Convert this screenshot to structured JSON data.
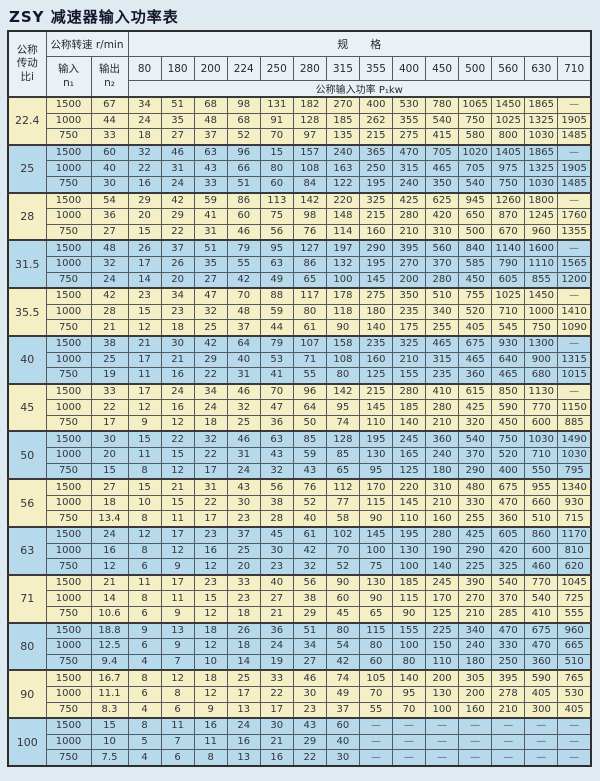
{
  "page": {
    "title": "ZSY 减速器输入功率表"
  },
  "table": {
    "header": {
      "ratio_label": "公称\n传动\n比i",
      "speed_label": "公称转速 r/min",
      "input_label": "输入\nn₁",
      "output_label": "输出\nn₂",
      "spec_label": "规　　格",
      "power_label": "公称输入功率 P₁kw",
      "spec_columns": [
        "80",
        "180",
        "200",
        "224",
        "250",
        "280",
        "315",
        "355",
        "400",
        "450",
        "500",
        "560",
        "630",
        "710"
      ]
    },
    "colors": {
      "group_cream": "#f4efc5",
      "group_blue": "#b7d9ec",
      "header_bg": "#eaf1f6",
      "page_bg": "#dfeaf1"
    },
    "dash": "—",
    "groups": [
      {
        "ratio": "22.4",
        "rows": [
          {
            "n1": "1500",
            "n2": "67",
            "values": [
              "34",
              "51",
              "68",
              "98",
              "131",
              "182",
              "270",
              "400",
              "530",
              "780",
              "1065",
              "1450",
              "1865",
              "—"
            ]
          },
          {
            "n1": "1000",
            "n2": "44",
            "values": [
              "24",
              "35",
              "48",
              "68",
              "91",
              "128",
              "185",
              "262",
              "355",
              "540",
              "750",
              "1025",
              "1325",
              "1905"
            ]
          },
          {
            "n1": "750",
            "n2": "33",
            "values": [
              "18",
              "27",
              "37",
              "52",
              "70",
              "97",
              "135",
              "215",
              "275",
              "415",
              "580",
              "800",
              "1030",
              "1485"
            ]
          }
        ]
      },
      {
        "ratio": "25",
        "rows": [
          {
            "n1": "1500",
            "n2": "60",
            "values": [
              "32",
              "46",
              "63",
              "96",
              "15",
              "157",
              "240",
              "365",
              "470",
              "705",
              "1020",
              "1405",
              "1865",
              "—"
            ]
          },
          {
            "n1": "1000",
            "n2": "40",
            "values": [
              "22",
              "31",
              "43",
              "66",
              "80",
              "108",
              "163",
              "250",
              "315",
              "465",
              "705",
              "975",
              "1325",
              "1905"
            ]
          },
          {
            "n1": "750",
            "n2": "30",
            "values": [
              "16",
              "24",
              "33",
              "51",
              "60",
              "84",
              "122",
              "195",
              "240",
              "350",
              "540",
              "750",
              "1030",
              "1485"
            ]
          }
        ]
      },
      {
        "ratio": "28",
        "rows": [
          {
            "n1": "1500",
            "n2": "54",
            "values": [
              "29",
              "42",
              "59",
              "86",
              "113",
              "142",
              "220",
              "325",
              "425",
              "625",
              "945",
              "1260",
              "1800",
              "—"
            ]
          },
          {
            "n1": "1000",
            "n2": "36",
            "values": [
              "20",
              "29",
              "41",
              "60",
              "75",
              "98",
              "148",
              "215",
              "280",
              "420",
              "650",
              "870",
              "1245",
              "1760"
            ]
          },
          {
            "n1": "750",
            "n2": "27",
            "values": [
              "15",
              "22",
              "31",
              "46",
              "56",
              "76",
              "114",
              "160",
              "210",
              "310",
              "500",
              "670",
              "960",
              "1355"
            ]
          }
        ]
      },
      {
        "ratio": "31.5",
        "rows": [
          {
            "n1": "1500",
            "n2": "48",
            "values": [
              "26",
              "37",
              "51",
              "79",
              "95",
              "127",
              "197",
              "290",
              "395",
              "560",
              "840",
              "1140",
              "1600",
              "—"
            ]
          },
          {
            "n1": "1000",
            "n2": "32",
            "values": [
              "17",
              "26",
              "35",
              "55",
              "63",
              "86",
              "132",
              "195",
              "270",
              "370",
              "585",
              "790",
              "1110",
              "1565"
            ]
          },
          {
            "n1": "750",
            "n2": "24",
            "values": [
              "14",
              "20",
              "27",
              "42",
              "49",
              "65",
              "100",
              "145",
              "200",
              "280",
              "450",
              "605",
              "855",
              "1200"
            ]
          }
        ]
      },
      {
        "ratio": "35.5",
        "rows": [
          {
            "n1": "1500",
            "n2": "42",
            "values": [
              "23",
              "34",
              "47",
              "70",
              "88",
              "117",
              "178",
              "275",
              "350",
              "510",
              "755",
              "1025",
              "1450",
              "—"
            ]
          },
          {
            "n1": "1000",
            "n2": "28",
            "values": [
              "15",
              "23",
              "32",
              "48",
              "59",
              "80",
              "118",
              "180",
              "235",
              "340",
              "520",
              "710",
              "1000",
              "1410"
            ]
          },
          {
            "n1": "750",
            "n2": "21",
            "values": [
              "12",
              "18",
              "25",
              "37",
              "44",
              "61",
              "90",
              "140",
              "175",
              "255",
              "405",
              "545",
              "750",
              "1090"
            ]
          }
        ]
      },
      {
        "ratio": "40",
        "rows": [
          {
            "n1": "1500",
            "n2": "38",
            "values": [
              "21",
              "30",
              "42",
              "64",
              "79",
              "107",
              "158",
              "235",
              "325",
              "465",
              "675",
              "930",
              "1300",
              "—"
            ]
          },
          {
            "n1": "1000",
            "n2": "25",
            "values": [
              "17",
              "21",
              "29",
              "40",
              "53",
              "71",
              "108",
              "160",
              "210",
              "315",
              "465",
              "640",
              "900",
              "1315"
            ]
          },
          {
            "n1": "750",
            "n2": "19",
            "values": [
              "11",
              "16",
              "22",
              "31",
              "41",
              "55",
              "80",
              "125",
              "155",
              "235",
              "360",
              "465",
              "680",
              "1015"
            ]
          }
        ]
      },
      {
        "ratio": "45",
        "rows": [
          {
            "n1": "1500",
            "n2": "33",
            "values": [
              "17",
              "24",
              "34",
              "46",
              "70",
              "96",
              "142",
              "215",
              "280",
              "410",
              "615",
              "850",
              "1130",
              "—"
            ]
          },
          {
            "n1": "1000",
            "n2": "22",
            "values": [
              "12",
              "16",
              "24",
              "32",
              "47",
              "64",
              "95",
              "145",
              "185",
              "280",
              "425",
              "590",
              "770",
              "1150"
            ]
          },
          {
            "n1": "750",
            "n2": "17",
            "values": [
              "9",
              "12",
              "18",
              "25",
              "36",
              "50",
              "74",
              "110",
              "140",
              "210",
              "320",
              "450",
              "600",
              "885"
            ]
          }
        ]
      },
      {
        "ratio": "50",
        "rows": [
          {
            "n1": "1500",
            "n2": "30",
            "values": [
              "15",
              "22",
              "32",
              "46",
              "63",
              "85",
              "128",
              "195",
              "245",
              "360",
              "540",
              "750",
              "1030",
              "1490"
            ]
          },
          {
            "n1": "1000",
            "n2": "20",
            "values": [
              "11",
              "15",
              "22",
              "31",
              "43",
              "59",
              "85",
              "130",
              "165",
              "240",
              "370",
              "520",
              "710",
              "1030"
            ]
          },
          {
            "n1": "750",
            "n2": "15",
            "values": [
              "8",
              "12",
              "17",
              "24",
              "32",
              "43",
              "65",
              "95",
              "125",
              "180",
              "290",
              "400",
              "550",
              "795"
            ]
          }
        ]
      },
      {
        "ratio": "56",
        "rows": [
          {
            "n1": "1500",
            "n2": "27",
            "values": [
              "15",
              "21",
              "31",
              "43",
              "56",
              "76",
              "112",
              "170",
              "220",
              "310",
              "480",
              "675",
              "955",
              "1340"
            ]
          },
          {
            "n1": "1000",
            "n2": "18",
            "values": [
              "10",
              "15",
              "22",
              "30",
              "38",
              "52",
              "77",
              "115",
              "145",
              "210",
              "330",
              "470",
              "660",
              "930"
            ]
          },
          {
            "n1": "750",
            "n2": "13.4",
            "values": [
              "8",
              "11",
              "17",
              "23",
              "28",
              "40",
              "58",
              "90",
              "110",
              "160",
              "255",
              "360",
              "510",
              "715"
            ]
          }
        ]
      },
      {
        "ratio": "63",
        "rows": [
          {
            "n1": "1500",
            "n2": "24",
            "values": [
              "12",
              "17",
              "23",
              "37",
              "45",
              "61",
              "102",
              "145",
              "195",
              "280",
              "425",
              "605",
              "860",
              "1170"
            ]
          },
          {
            "n1": "1000",
            "n2": "16",
            "values": [
              "8",
              "12",
              "16",
              "25",
              "30",
              "42",
              "70",
              "100",
              "130",
              "190",
              "290",
              "420",
              "600",
              "810"
            ]
          },
          {
            "n1": "750",
            "n2": "12",
            "values": [
              "6",
              "9",
              "12",
              "20",
              "23",
              "32",
              "52",
              "75",
              "100",
              "140",
              "225",
              "325",
              "460",
              "620"
            ]
          }
        ]
      },
      {
        "ratio": "71",
        "rows": [
          {
            "n1": "1500",
            "n2": "21",
            "values": [
              "11",
              "17",
              "23",
              "33",
              "40",
              "56",
              "90",
              "130",
              "185",
              "245",
              "390",
              "540",
              "770",
              "1045"
            ]
          },
          {
            "n1": "1000",
            "n2": "14",
            "values": [
              "8",
              "11",
              "15",
              "23",
              "27",
              "38",
              "60",
              "90",
              "115",
              "170",
              "270",
              "370",
              "540",
              "725"
            ]
          },
          {
            "n1": "750",
            "n2": "10.6",
            "values": [
              "6",
              "9",
              "12",
              "18",
              "21",
              "29",
              "45",
              "65",
              "90",
              "125",
              "210",
              "285",
              "410",
              "555"
            ]
          }
        ]
      },
      {
        "ratio": "80",
        "rows": [
          {
            "n1": "1500",
            "n2": "18.8",
            "values": [
              "9",
              "13",
              "18",
              "26",
              "36",
              "51",
              "80",
              "115",
              "155",
              "225",
              "340",
              "470",
              "675",
              "960"
            ]
          },
          {
            "n1": "1000",
            "n2": "12.5",
            "values": [
              "6",
              "9",
              "12",
              "18",
              "24",
              "34",
              "54",
              "80",
              "100",
              "150",
              "240",
              "330",
              "470",
              "665"
            ]
          },
          {
            "n1": "750",
            "n2": "9.4",
            "values": [
              "4",
              "7",
              "10",
              "14",
              "19",
              "27",
              "42",
              "60",
              "80",
              "110",
              "180",
              "250",
              "360",
              "510"
            ]
          }
        ]
      },
      {
        "ratio": "90",
        "rows": [
          {
            "n1": "1500",
            "n2": "16.7",
            "values": [
              "8",
              "12",
              "18",
              "25",
              "33",
              "46",
              "74",
              "105",
              "140",
              "200",
              "305",
              "395",
              "590",
              "765"
            ]
          },
          {
            "n1": "1000",
            "n2": "11.1",
            "values": [
              "6",
              "8",
              "12",
              "17",
              "22",
              "30",
              "49",
              "70",
              "95",
              "130",
              "200",
              "278",
              "405",
              "530"
            ]
          },
          {
            "n1": "750",
            "n2": "8.3",
            "values": [
              "4",
              "6",
              "9",
              "13",
              "17",
              "23",
              "37",
              "55",
              "70",
              "100",
              "160",
              "210",
              "300",
              "405"
            ]
          }
        ]
      },
      {
        "ratio": "100",
        "rows": [
          {
            "n1": "1500",
            "n2": "15",
            "values": [
              "8",
              "11",
              "16",
              "24",
              "30",
              "43",
              "60",
              "—",
              "—",
              "—",
              "—",
              "—",
              "—",
              "—"
            ]
          },
          {
            "n1": "1000",
            "n2": "10",
            "values": [
              "5",
              "7",
              "11",
              "16",
              "21",
              "29",
              "40",
              "—",
              "—",
              "—",
              "—",
              "—",
              "—",
              "—"
            ]
          },
          {
            "n1": "750",
            "n2": "7.5",
            "values": [
              "4",
              "6",
              "8",
              "13",
              "16",
              "22",
              "30",
              "—",
              "—",
              "—",
              "—",
              "—",
              "—",
              "—"
            ]
          }
        ]
      }
    ]
  }
}
